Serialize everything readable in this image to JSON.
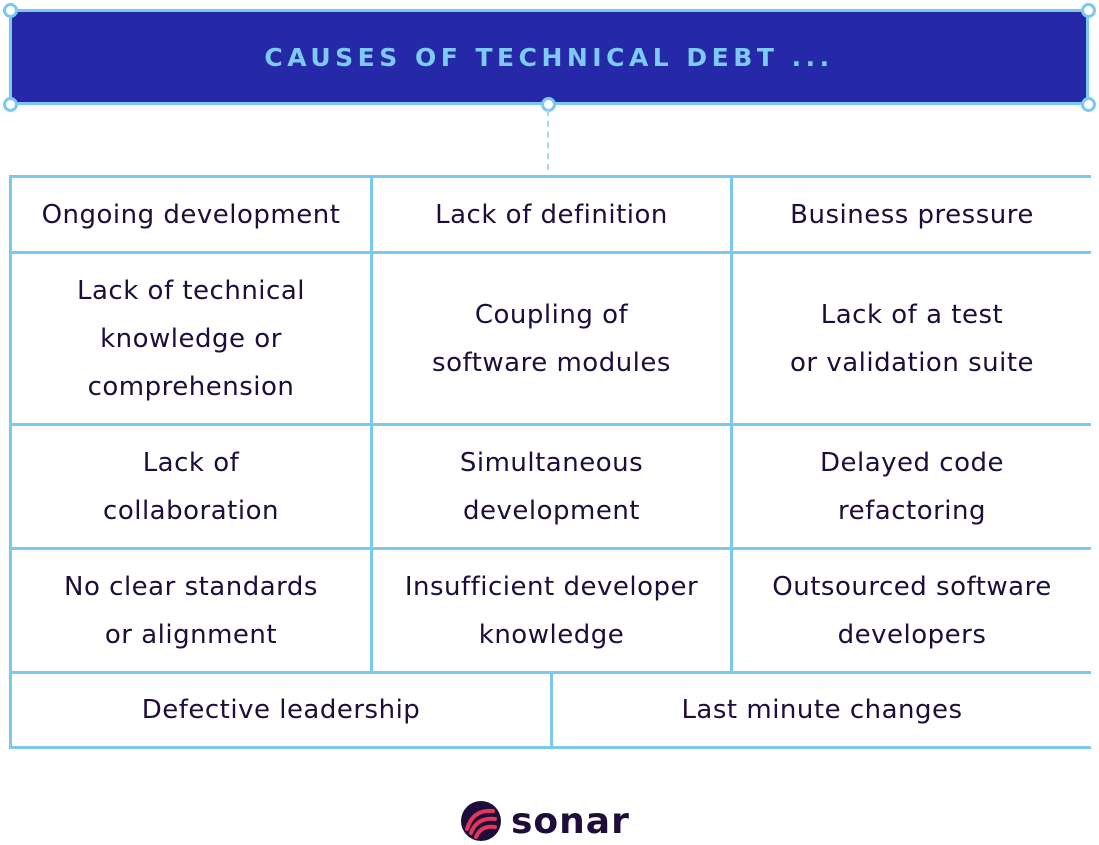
{
  "title": "CAUSES OF TECHNICAL DEBT ...",
  "rows": [
    [
      "Ongoing development",
      "Lack of definition",
      "Business pressure"
    ],
    [
      "Lack of technical\nknowledge or\ncomprehension",
      "Coupling of\nsoftware modules",
      "Lack of a test\nor validation suite"
    ],
    [
      "Lack of\ncollaboration",
      "Simultaneous\ndevelopment",
      "Delayed code\nrefactoring"
    ],
    [
      "No clear standards\nor alignment",
      "Insufficient developer\nknowledge",
      "Outsourced software\ndevelopers"
    ],
    [
      "Defective leadership",
      "Last minute changes"
    ]
  ],
  "logo": {
    "text": "sonar",
    "icon": "sonar-logo-icon"
  },
  "colors": {
    "title_bg": "#2528a7",
    "title_text": "#7dcbf4",
    "border": "#7cc8ee",
    "cell_text": "#1e0c3a",
    "logo_accent": "#e0385a"
  }
}
